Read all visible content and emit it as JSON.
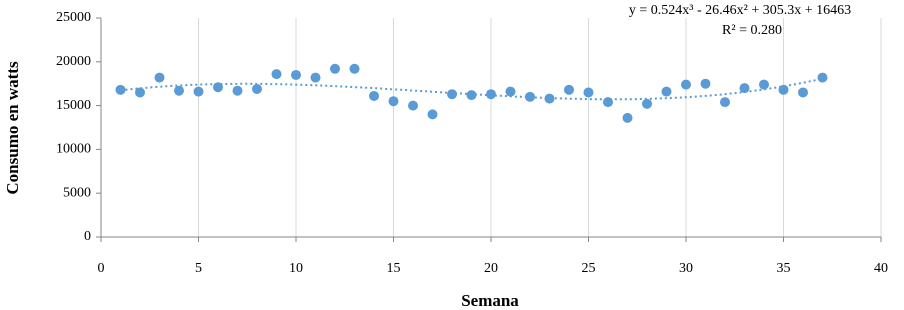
{
  "chart_data": {
    "type": "scatter",
    "x_label": "Semana",
    "y_label": "Consumo en watts",
    "x": [
      1,
      2,
      3,
      4,
      5,
      6,
      7,
      8,
      9,
      10,
      11,
      12,
      13,
      14,
      15,
      16,
      17,
      18,
      19,
      20,
      21,
      22,
      23,
      24,
      25,
      26,
      27,
      28,
      29,
      30,
      31,
      32,
      33,
      34,
      35,
      36,
      37
    ],
    "values": [
      16800,
      16500,
      18200,
      16700,
      16600,
      17100,
      16700,
      16900,
      18600,
      18500,
      18200,
      19200,
      19200,
      16100,
      15500,
      15000,
      14000,
      16300,
      16200,
      16300,
      16600,
      16000,
      15800,
      16800,
      16500,
      15400,
      13600,
      15200,
      16600,
      17400,
      17500,
      15400,
      17000,
      17400,
      16800,
      16500,
      18200
    ],
    "color": "#5b9bd5",
    "xlim": [
      0,
      40
    ],
    "xticks": [
      0,
      5,
      10,
      15,
      20,
      25,
      30,
      35,
      40
    ],
    "ylim": [
      0,
      25000
    ],
    "yticks": [
      0,
      5000,
      10000,
      15000,
      20000,
      25000
    ],
    "grid": "x",
    "trendline": {
      "coefficients": [
        0.524,
        -26.46,
        305.3,
        16463
      ],
      "label": "y = 0.524x³ - 26.46x² + 305.3x + 16463",
      "r2_label": "R² = 0.280"
    }
  }
}
